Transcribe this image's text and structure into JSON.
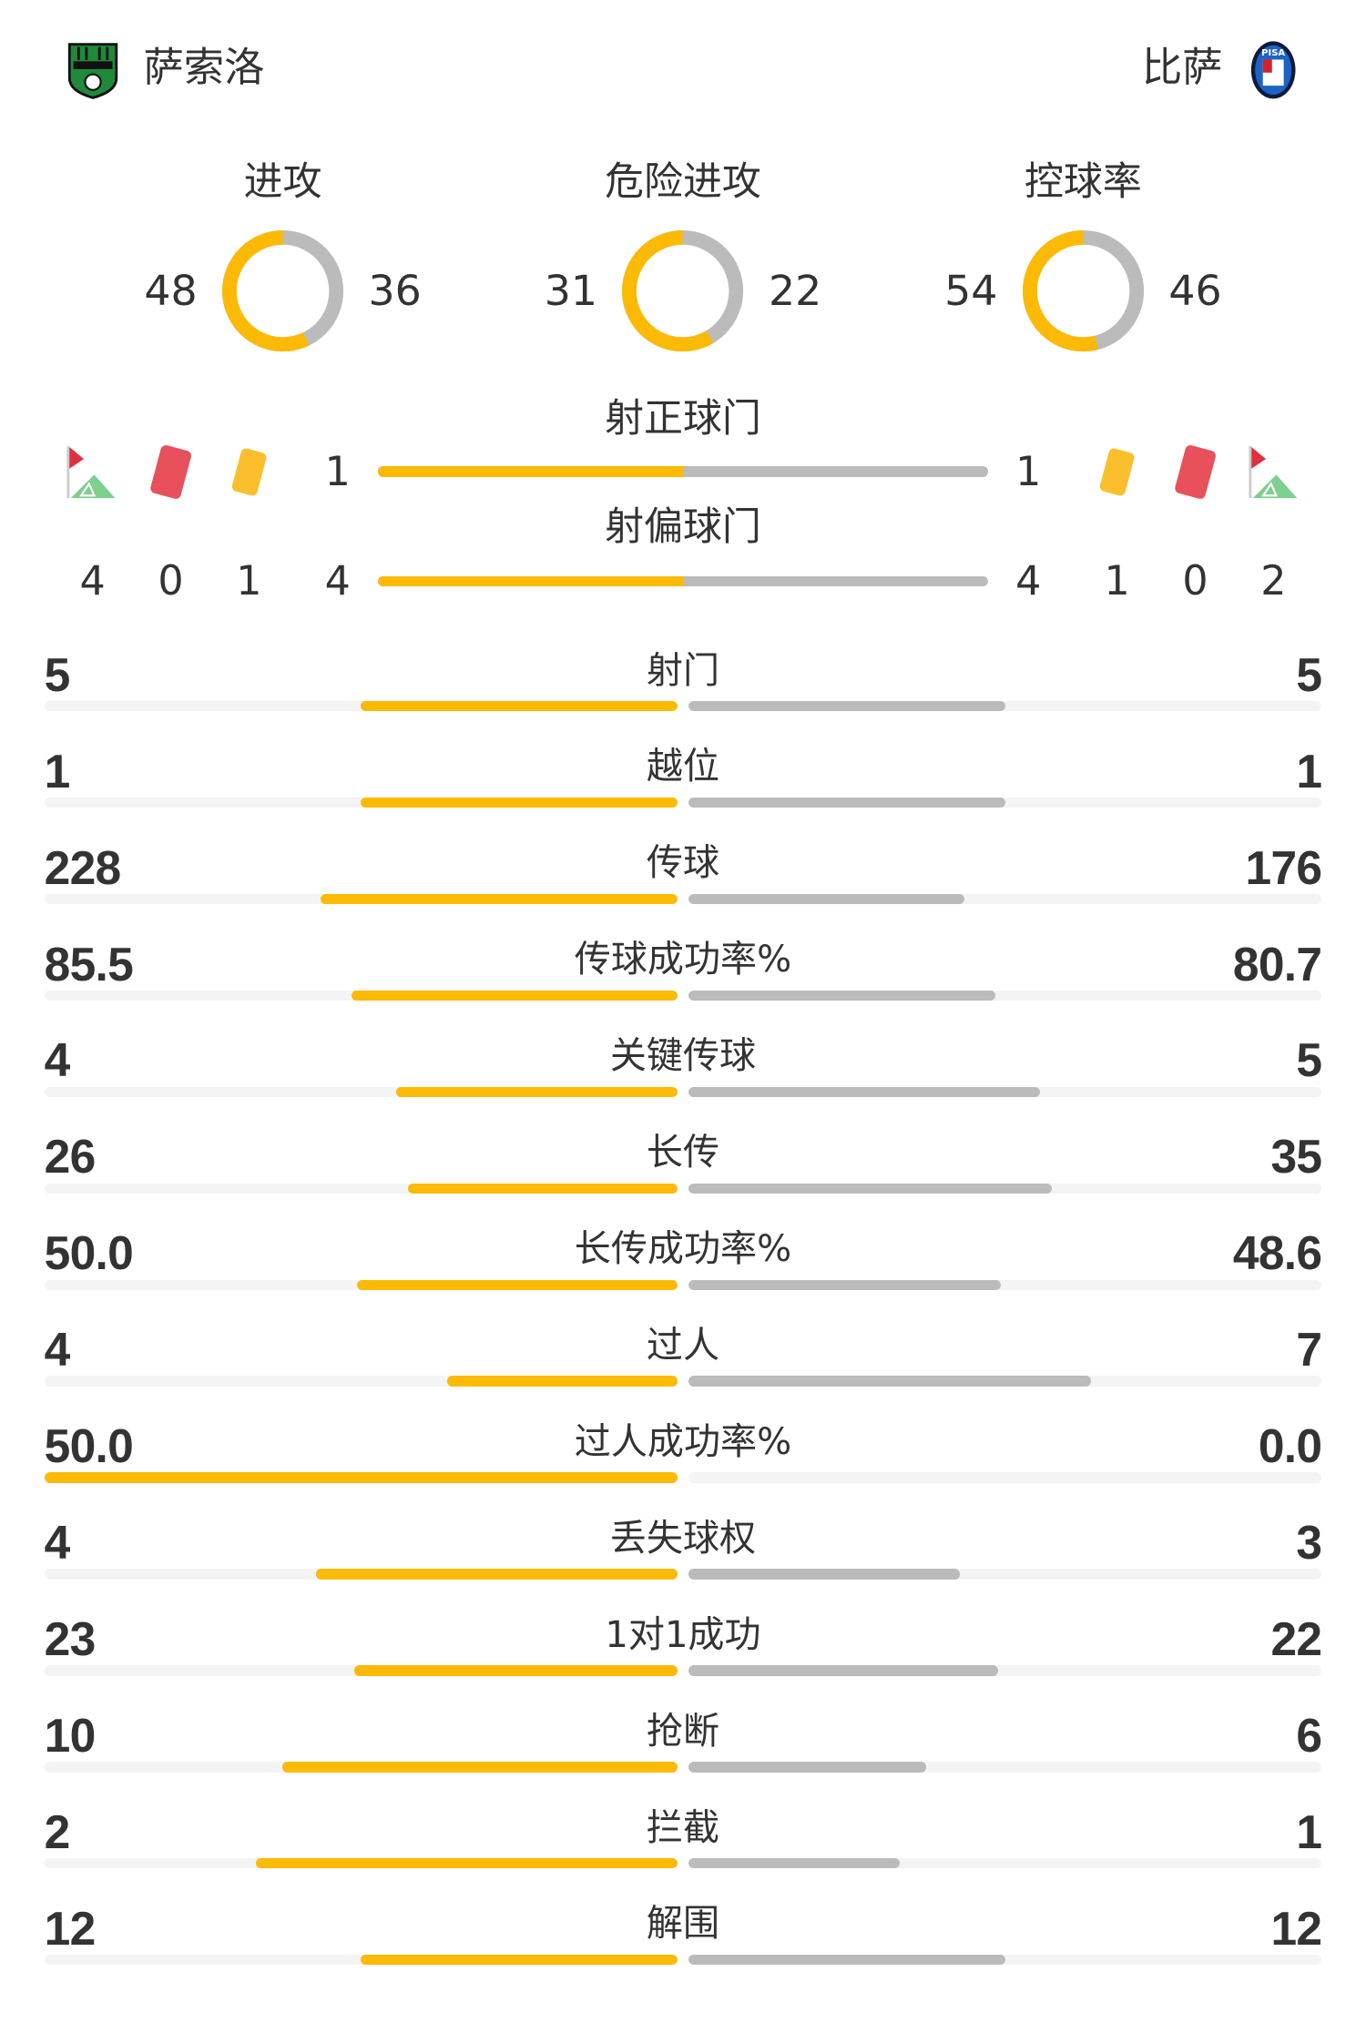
{
  "home": {
    "name": "萨索洛",
    "logo": "sassuolo-crest"
  },
  "away": {
    "name": "比萨",
    "logo": "pisa-crest"
  },
  "colors": {
    "home": "#fcba05",
    "away": "#bbbbbb",
    "track": "#f4f4f4",
    "text": "#333333"
  },
  "donuts": [
    {
      "title": "进攻",
      "home": 48,
      "away": 36
    },
    {
      "title": "危险进攻",
      "home": 31,
      "away": 22
    },
    {
      "title": "控球率",
      "home": 54,
      "away": 46
    }
  ],
  "shots_on": {
    "title": "射正球门",
    "home": 1,
    "away": 1
  },
  "shots_off": {
    "title": "射偏球门",
    "home": 4,
    "away": 4
  },
  "discipline": {
    "icons": [
      "corner-flag-icon",
      "red-card-icon",
      "yellow-card-icon"
    ],
    "home": {
      "corners": 4,
      "red": 0,
      "yellow": 1
    },
    "away": {
      "yellow": 1,
      "red": 0,
      "corners": 2
    }
  },
  "stats": [
    {
      "label": "射门",
      "home": "5",
      "away": "5"
    },
    {
      "label": "越位",
      "home": "1",
      "away": "1"
    },
    {
      "label": "传球",
      "home": "228",
      "away": "176"
    },
    {
      "label": "传球成功率%",
      "home": "85.5",
      "away": "80.7"
    },
    {
      "label": "关键传球",
      "home": "4",
      "away": "5"
    },
    {
      "label": "长传",
      "home": "26",
      "away": "35"
    },
    {
      "label": "长传成功率%",
      "home": "50.0",
      "away": "48.6"
    },
    {
      "label": "过人",
      "home": "4",
      "away": "7"
    },
    {
      "label": "过人成功率%",
      "home": "50.0",
      "away": "0.0"
    },
    {
      "label": "丢失球权",
      "home": "4",
      "away": "3"
    },
    {
      "label": "1对1成功",
      "home": "23",
      "away": "22"
    },
    {
      "label": "抢断",
      "home": "10",
      "away": "6"
    },
    {
      "label": "拦截",
      "home": "2",
      "away": "1"
    },
    {
      "label": "解围",
      "home": "12",
      "away": "12"
    }
  ]
}
